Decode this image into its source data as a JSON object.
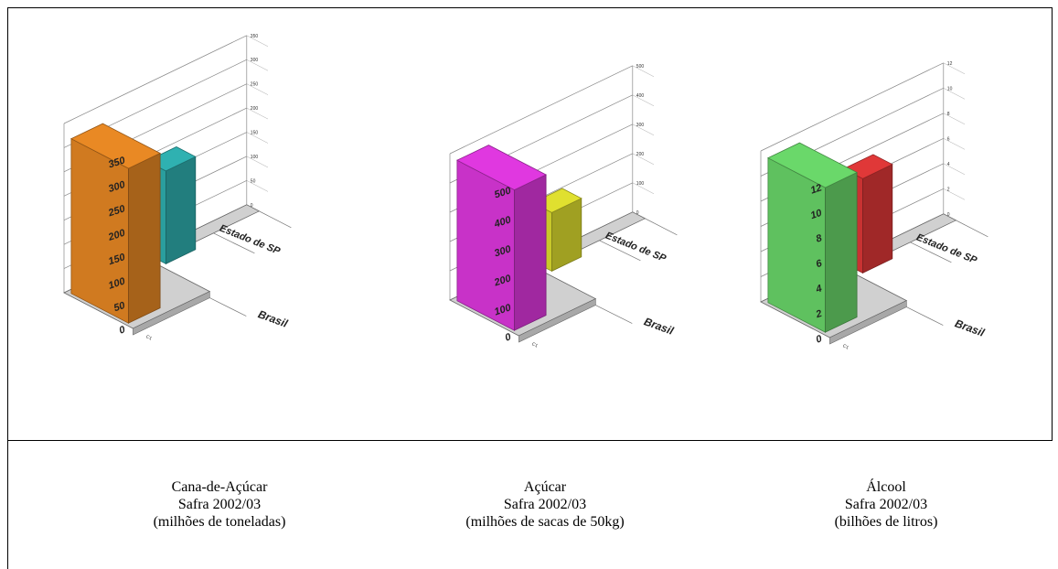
{
  "charts": [
    {
      "id": "cana",
      "caption": [
        "Cana-de-Açúcar",
        "Safra 2002/03",
        "(milhões de toneladas)"
      ],
      "front_ticks": [
        "0",
        "50",
        "100",
        "150",
        "200",
        "250",
        "300",
        "350"
      ],
      "back_ticks": [
        "0",
        "50",
        "100",
        "150",
        "200",
        "250",
        "300",
        "350"
      ],
      "category_labels": [
        "Brasil",
        "Estado de SP"
      ],
      "series_label": "C1",
      "colors": {
        "front": "#d07a20",
        "back": "#2a9e9e"
      }
    },
    {
      "id": "acucar",
      "caption": [
        "Açúcar",
        "Safra 2002/03",
        "(milhões de sacas de 50kg)"
      ],
      "front_ticks": [
        "0",
        "100",
        "200",
        "300",
        "400",
        "500"
      ],
      "back_ticks": [
        "0",
        "100",
        "200",
        "300",
        "400",
        "500"
      ],
      "category_labels": [
        "Brasil",
        "Estado de SP"
      ],
      "series_label": "C1",
      "colors": {
        "front": "#c832c8",
        "back": "#c8c82a"
      }
    },
    {
      "id": "alcool",
      "caption": [
        "Álcool",
        "Safra 2002/03",
        "(bilhões de litros)"
      ],
      "front_ticks": [
        "0",
        "2",
        "4",
        "6",
        "8",
        "10",
        "12"
      ],
      "back_ticks": [
        "0",
        "2",
        "4",
        "6",
        "8",
        "10",
        "12"
      ],
      "category_labels": [
        "Brasil",
        "Estado de SP"
      ],
      "series_label": "C1",
      "colors": {
        "front": "#5fc15f",
        "back": "#c83232"
      }
    }
  ],
  "chart_data": [
    {
      "type": "bar",
      "categories": [
        "Brasil",
        "Estado de SP"
      ],
      "series": [
        {
          "name": "C1",
          "values": [
            320,
            192
          ]
        }
      ],
      "ylim": [
        0,
        350
      ],
      "title": "Cana-de-Açúcar Safra 2002/03",
      "ylabel": "(milhões de toneladas)",
      "xlabel": ""
    },
    {
      "type": "bar",
      "categories": [
        "Brasil",
        "Estado de SP"
      ],
      "series": [
        {
          "name": "C1",
          "values": [
            480,
            200
          ]
        }
      ],
      "ylim": [
        0,
        500
      ],
      "title": "Açúcar Safra 2002/03",
      "ylabel": "(milhões de sacas de 50kg)",
      "xlabel": ""
    },
    {
      "type": "bar",
      "categories": [
        "Brasil",
        "Estado de SP"
      ],
      "series": [
        {
          "name": "C1",
          "values": [
            11.5,
            7.5
          ]
        }
      ],
      "ylim": [
        0,
        12
      ],
      "title": "Álcool Safra 2002/03",
      "ylabel": "(bilhões de litros)",
      "xlabel": ""
    }
  ]
}
